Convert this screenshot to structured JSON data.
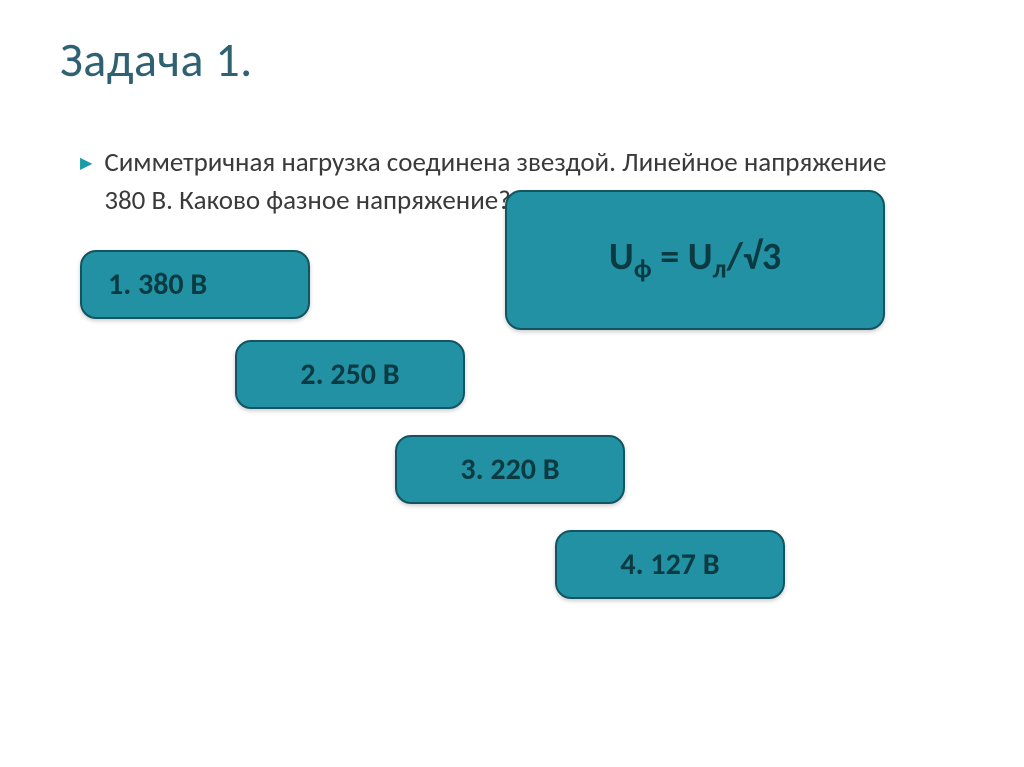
{
  "title": "Задача 1.",
  "question": "Симметричная нагрузка соединена звездой. Линейное напряжение 380 В. Каково фазное напряжение?",
  "options": [
    {
      "label": "1. 380 В"
    },
    {
      "label": "2. 250 В"
    },
    {
      "label": "3. 220 В"
    },
    {
      "label": "4. 127 В"
    }
  ],
  "formula": {
    "lhs_base": "U",
    "lhs_sub": "ф",
    "eq": " = ",
    "rhs_base": "U",
    "rhs_sub": "л",
    "rhs_tail": "/√3"
  },
  "style": {
    "background": "#ffffff",
    "title_color": "#2e6171",
    "text_color": "#3a3a3a",
    "bullet_color": "#1a9ba8",
    "box_bg": "#2191a3",
    "box_border": "#125560",
    "box_text": "#0a3a42",
    "title_fontsize": 48,
    "question_fontsize": 27,
    "option_fontsize": 30,
    "formula_fontsize": 38,
    "border_radius": 16
  }
}
